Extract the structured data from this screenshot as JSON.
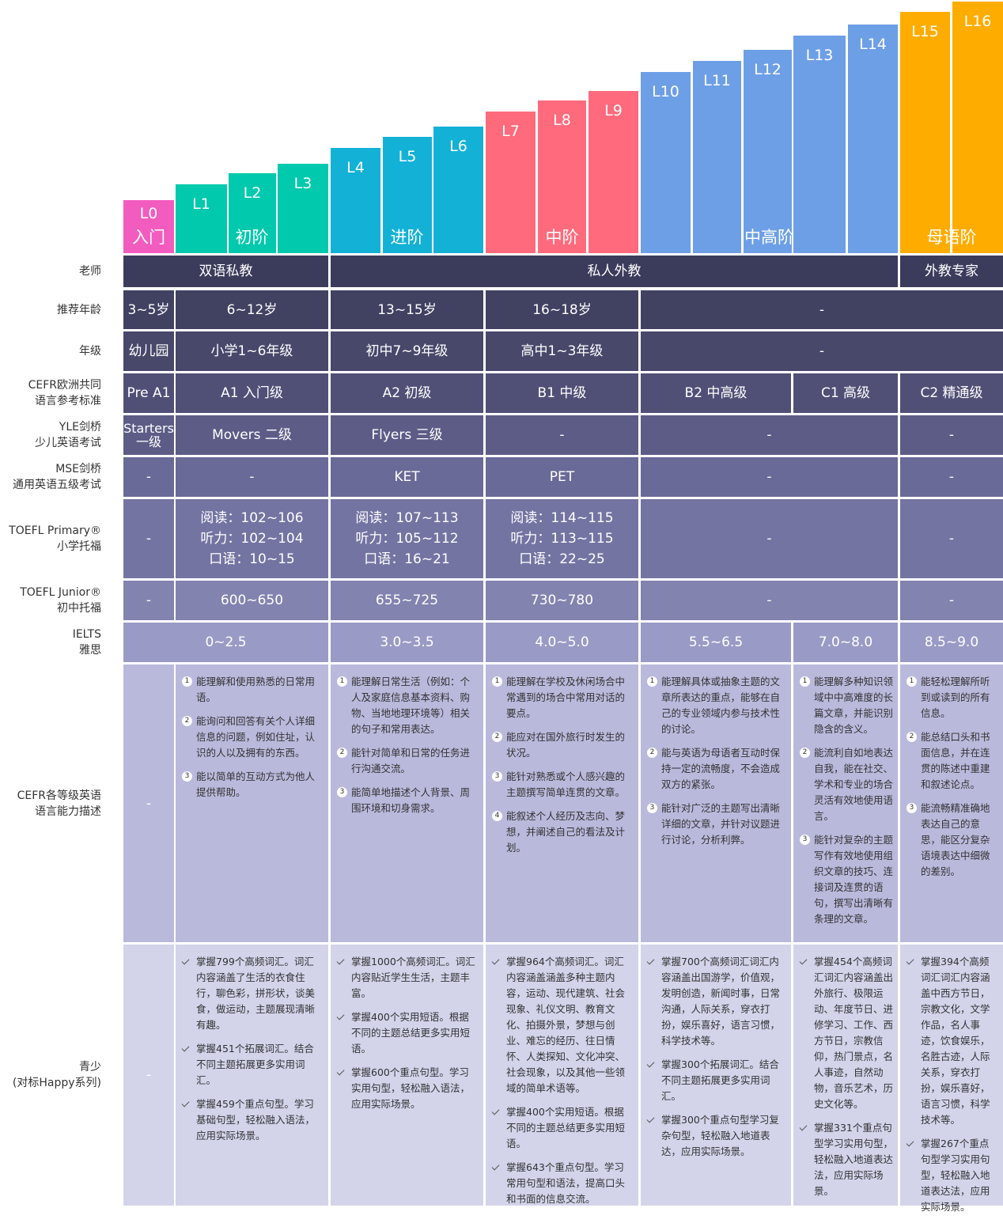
{
  "levels": [
    "L0",
    "L1",
    "L2",
    "L3",
    "L4",
    "L5",
    "L6",
    "L7",
    "L8",
    "L9",
    "L10",
    "L11",
    "L12",
    "L13",
    "L14",
    "L15",
    "L16"
  ],
  "stages": [
    "入门",
    "初阶",
    "进阶",
    "中阶",
    "中高阶",
    "母语阶"
  ],
  "rows": [
    {
      "label": "老师",
      "cells": [
        "双语私教",
        "私人外教",
        "外教专家"
      ]
    },
    {
      "label": "推荐年龄",
      "cells": [
        "3~5岁",
        "6~12岁",
        "13~15岁",
        "16~18岁",
        "-"
      ]
    },
    {
      "label": "年级",
      "cells": [
        "幼儿园",
        "小学1~6年级",
        "初中7~9年级",
        "高中1~3年级",
        "-"
      ]
    },
    {
      "label": "CEFR欧洲共同\n语言参考标准",
      "cells": [
        "Pre A1",
        "A1 入门级",
        "A2 初级",
        "B1 中级",
        "B2 中高级",
        "C1 高级",
        "C2 精通级"
      ]
    },
    {
      "label": "YLE剑桥\n少儿英语考试",
      "cells": [
        "Starters\n一级",
        "Movers 二级",
        "Flyers 三级",
        "-",
        "-",
        "-"
      ]
    },
    {
      "label": "MSE剑桥\n通用英语五级考试",
      "cells": [
        "-",
        "-",
        "KET",
        "PET",
        "-",
        "-"
      ]
    },
    {
      "label": "TOEFL Primary®\n小学托福",
      "cells": [
        "-",
        "阅读：102~106\n听力：102~104\n口语：10~15",
        "阅读：107~113\n听力：105~112\n口语：16~21",
        "阅读：114~115\n听力：113~115\n口语：22~25",
        "-",
        "-"
      ]
    },
    {
      "label": "TOEFL Junior®\n初中托福",
      "cells": [
        "-",
        "600~650",
        "655~725",
        "730~780",
        "-",
        "-"
      ]
    },
    {
      "label": "IELTS\n雅思",
      "cells": [
        "0~2.5",
        "3.0~3.5",
        "4.0~5.0",
        "5.5~6.5",
        "7.0~8.0",
        "8.5~9.0"
      ]
    },
    {
      "label": "CEFR各等级英语\n语言能力描述",
      "cells": [
        "-",
        [
          "能理解和使用熟悉的日常用语。",
          "能询问和回答有关个人详细信息的问题，例如住址，认识的人以及拥有的东西。",
          "能以简单的互动方式为他人提供帮助。"
        ],
        [
          "能理解日常生活（例如：个人及家庭信息基本资料、购物、当地地理环境等）相关的句子和常用表达。",
          "能针对简单和日常的任务进行沟通交流。",
          "能简单地描述个人背景、周围环境和切身需求。"
        ],
        [
          "能理解在学校及休闲场合中常遇到的场合中常用对话的要点。",
          "能应对在国外旅行时发生的状况。",
          "能针对熟悉或个人感兴趣的主题撰写简单连贯的文章。",
          "能叙述个人经历及志向、梦想，并阐述自己的看法及计划。"
        ],
        [
          "能理解具体或抽象主题的文章所表达的重点，能够在自己的专业领域内参与技术性的讨论。",
          "能与英语为母语者互动时保持一定的流畅度，不会造成双方的紧张。",
          "能针对广泛的主题写出清晰详细的文章，并针对议题进行讨论，分析利弊。"
        ],
        [
          "能理解多种知识领域中中高难度的长篇文章，并能识别隐含的含义。",
          "能流利自如地表达自我，能在社交、学术和专业的场合灵活有效地使用语言。",
          "能针对复杂的主题写作有效地使用组织文章的技巧、连接词及连贯的语句，撰写出清晰有条理的文章。"
        ],
        [
          "能轻松理解所听到或读到的所有信息。",
          "能总结口头和书面信息，并在连贯的陈述中重建和叙述论点。",
          "能流畅精准确地表达自己的意思，能区分复杂语境表达中细微的差别。"
        ]
      ]
    },
    {
      "label": "青少\n(对标Happy系列)",
      "cells": [
        "-",
        [
          "掌握799个高频词汇。词汇内容涵盖了生活的衣食住行，聊色彩，拼形状，谈美食，做运动，主题展现清晰有趣。",
          "掌握451个拓展词汇。结合不同主题拓展更多实用词汇。",
          "掌握459个重点句型。学习基础句型，轻松融入语法，应用实际场景。"
        ],
        [
          "掌握1000个高频词汇。词汇内容贴近学生生活，主题丰富。",
          "掌握400个实用短语。根据不同的主题总结更多实用短语。",
          "掌握600个重点句型。学习实用句型，轻松融入语法，应用实际场景。"
        ],
        [
          "掌握964个高频词汇。词汇内容涵盖涵盖多种主题内容，运动、现代建筑、社会现象、礼仪文明、教育文化、拍摄外景，梦想与创业、难忘的经历、往日情怀、人类探知、文化冲突、社会现象，以及其他一些领域的简单术语等。",
          "掌握400个实用短语。根据不同的主题总结更多实用短语。",
          "掌握643个重点句型。学习常用句型和语法，提高口头和书面的信息交流。"
        ],
        [
          "掌握700个高频词汇词汇内容涵盖出国游学，价值观，发明创造，新闻时事，日常沟通，人际关系，穿衣打扮，娱乐喜好，语言习惯，科学技术等。",
          "掌握300个拓展词汇。结合不同主题拓展更多实用词汇。",
          "掌握300个重点句型学习复杂句型，轻松融入地道表达，应用实际场景。"
        ],
        [
          "掌握454个高频词汇词汇内容涵盖出外旅行、极限运动、年度节日、进修学习、工作、西方节日，宗教信仰，热门景点，名人事迹，自然动物，音乐艺术，历史文化等。",
          "掌握331个重点句型学习实用句型，轻松融入地道表达法，应用实际场景。"
        ],
        [
          "掌握394个高频词汇词汇内容涵盖中西方节日，宗教文化，文学作品，名人事迹，饮食娱乐，名胜古迹，人际关系，穿衣打扮，娱乐喜好，语言习惯，科学技术等。",
          "掌握267个重点句型学习实用句型，轻松融入地道表达法，应用实际场景。"
        ]
      ]
    }
  ]
}
